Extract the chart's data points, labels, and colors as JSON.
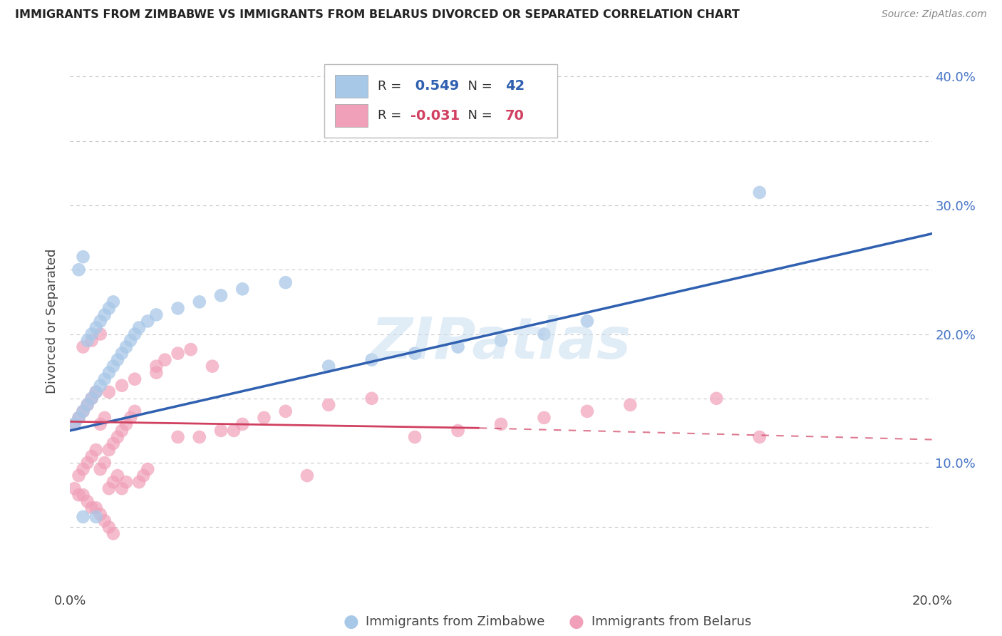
{
  "title": "IMMIGRANTS FROM ZIMBABWE VS IMMIGRANTS FROM BELARUS DIVORCED OR SEPARATED CORRELATION CHART",
  "source": "Source: ZipAtlas.com",
  "ylabel": "Divorced or Separated",
  "xlim": [
    0.0,
    0.2
  ],
  "ylim": [
    0.0,
    0.42
  ],
  "xtick_positions": [
    0.0,
    0.05,
    0.1,
    0.15,
    0.2
  ],
  "xtick_labels": [
    "0.0%",
    "",
    "",
    "",
    "20.0%"
  ],
  "ytick_vals": [
    0.05,
    0.1,
    0.15,
    0.2,
    0.25,
    0.3,
    0.35,
    0.4
  ],
  "ytick_labels": [
    "",
    "10.0%",
    "",
    "20.0%",
    "",
    "30.0%",
    "",
    "40.0%"
  ],
  "r_zimbabwe": 0.549,
  "n_zimbabwe": 42,
  "r_belarus": -0.031,
  "n_belarus": 70,
  "blue_color": "#a8c8e8",
  "pink_color": "#f0a0b8",
  "blue_line_color": "#3060b0",
  "pink_line_color": "#d04060",
  "watermark": "ZIPatlas",
  "legend_label_1": "Immigrants from Zimbabwe",
  "legend_label_2": "Immigrants from Belarus",
  "zim_line": [
    0.0,
    0.125,
    0.2,
    0.278
  ],
  "bel_line_solid": [
    0.0,
    0.132,
    0.095,
    0.127
  ],
  "bel_line_dash": [
    0.095,
    0.127,
    0.2,
    0.118
  ],
  "zimbabwe_x": [
    0.001,
    0.002,
    0.002,
    0.003,
    0.003,
    0.004,
    0.004,
    0.005,
    0.005,
    0.006,
    0.006,
    0.007,
    0.007,
    0.008,
    0.008,
    0.009,
    0.009,
    0.01,
    0.01,
    0.011,
    0.012,
    0.013,
    0.014,
    0.015,
    0.016,
    0.018,
    0.02,
    0.025,
    0.03,
    0.035,
    0.04,
    0.05,
    0.06,
    0.07,
    0.08,
    0.09,
    0.1,
    0.11,
    0.12,
    0.16,
    0.003,
    0.006
  ],
  "zimbabwe_y": [
    0.13,
    0.135,
    0.25,
    0.14,
    0.26,
    0.145,
    0.195,
    0.15,
    0.2,
    0.155,
    0.205,
    0.16,
    0.21,
    0.165,
    0.215,
    0.17,
    0.22,
    0.175,
    0.225,
    0.18,
    0.185,
    0.19,
    0.195,
    0.2,
    0.205,
    0.21,
    0.215,
    0.22,
    0.225,
    0.23,
    0.235,
    0.24,
    0.175,
    0.18,
    0.185,
    0.19,
    0.195,
    0.2,
    0.21,
    0.31,
    0.058,
    0.058
  ],
  "belarus_x": [
    0.001,
    0.001,
    0.002,
    0.002,
    0.002,
    0.003,
    0.003,
    0.003,
    0.004,
    0.004,
    0.004,
    0.005,
    0.005,
    0.005,
    0.006,
    0.006,
    0.006,
    0.007,
    0.007,
    0.007,
    0.008,
    0.008,
    0.008,
    0.009,
    0.009,
    0.009,
    0.01,
    0.01,
    0.01,
    0.011,
    0.011,
    0.012,
    0.012,
    0.013,
    0.013,
    0.014,
    0.015,
    0.016,
    0.017,
    0.018,
    0.02,
    0.022,
    0.025,
    0.028,
    0.03,
    0.033,
    0.038,
    0.04,
    0.045,
    0.05,
    0.055,
    0.06,
    0.07,
    0.08,
    0.09,
    0.1,
    0.11,
    0.12,
    0.13,
    0.15,
    0.003,
    0.005,
    0.007,
    0.009,
    0.012,
    0.015,
    0.02,
    0.025,
    0.035,
    0.16
  ],
  "belarus_y": [
    0.13,
    0.08,
    0.135,
    0.09,
    0.075,
    0.14,
    0.095,
    0.075,
    0.145,
    0.1,
    0.07,
    0.15,
    0.105,
    0.065,
    0.155,
    0.11,
    0.065,
    0.13,
    0.095,
    0.06,
    0.135,
    0.1,
    0.055,
    0.11,
    0.08,
    0.05,
    0.115,
    0.085,
    0.045,
    0.12,
    0.09,
    0.125,
    0.08,
    0.13,
    0.085,
    0.135,
    0.14,
    0.085,
    0.09,
    0.095,
    0.175,
    0.18,
    0.185,
    0.188,
    0.12,
    0.175,
    0.125,
    0.13,
    0.135,
    0.14,
    0.09,
    0.145,
    0.15,
    0.12,
    0.125,
    0.13,
    0.135,
    0.14,
    0.145,
    0.15,
    0.19,
    0.195,
    0.2,
    0.155,
    0.16,
    0.165,
    0.17,
    0.12,
    0.125,
    0.12
  ]
}
